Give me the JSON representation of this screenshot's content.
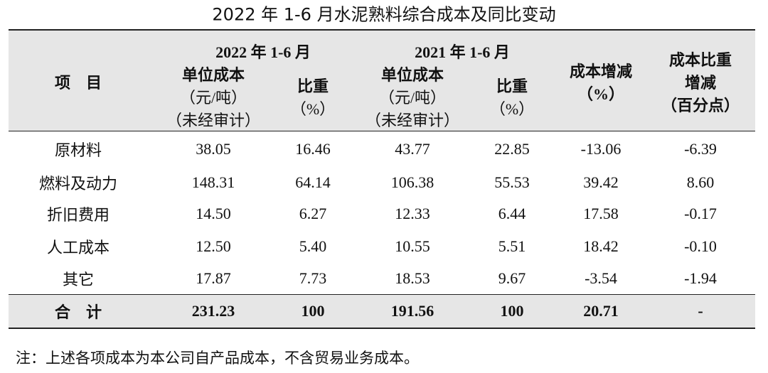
{
  "title": "2022 年 1-6 月水泥熟料综合成本及同比变动",
  "table": {
    "group_headers": [
      "2022 年 1-6 月",
      "2021 年 1-6 月"
    ],
    "headers": [
      [
        "项　目"
      ],
      [
        "单位成本",
        "（元/吨）",
        "（未经审计）"
      ],
      [
        "比重",
        "（%）"
      ],
      [
        "单位成本",
        "（元/吨）",
        "（未经审计）"
      ],
      [
        "比重",
        "（%）"
      ],
      [
        "成本增减",
        "（%）"
      ],
      [
        "成本比重",
        "增减",
        "（百分点）"
      ]
    ],
    "rows": [
      [
        "原材料",
        "38.05",
        "16.46",
        "43.77",
        "22.85",
        "-13.06",
        "-6.39"
      ],
      [
        "燃料及动力",
        "148.31",
        "64.14",
        "106.38",
        "55.53",
        "39.42",
        "8.60"
      ],
      [
        "折旧费用",
        "14.50",
        "6.27",
        "12.33",
        "6.44",
        "17.58",
        "-0.17"
      ],
      [
        "人工成本",
        "12.50",
        "5.40",
        "10.55",
        "5.51",
        "18.42",
        "-0.10"
      ],
      [
        "其它",
        "17.87",
        "7.73",
        "18.53",
        "9.67",
        "-3.54",
        "-1.94"
      ]
    ],
    "total": [
      "合　计",
      "231.23",
      "100",
      "191.56",
      "100",
      "20.71",
      "-"
    ]
  },
  "note": "注：上述各项成本为本公司自产品成本，不含贸易业务成本。"
}
